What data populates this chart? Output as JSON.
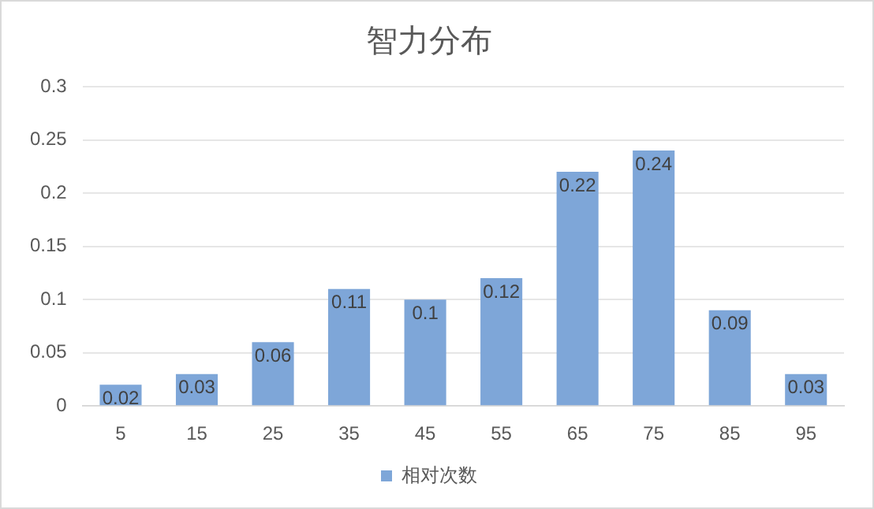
{
  "chart_data": {
    "type": "bar",
    "title": "智力分布",
    "categories": [
      "5",
      "15",
      "25",
      "35",
      "45",
      "55",
      "65",
      "75",
      "85",
      "95"
    ],
    "series": [
      {
        "name": "相对次数",
        "color": "#7ea6d8",
        "values": [
          0.02,
          0.03,
          0.06,
          0.11,
          0.1,
          0.12,
          0.22,
          0.24,
          0.09,
          0.03
        ]
      }
    ],
    "ylim": [
      0,
      0.3
    ],
    "yticks": [
      0,
      0.05,
      0.1,
      0.15,
      0.2,
      0.25,
      0.3
    ],
    "grid": "y",
    "legend": "bottom",
    "data_labels": true
  }
}
